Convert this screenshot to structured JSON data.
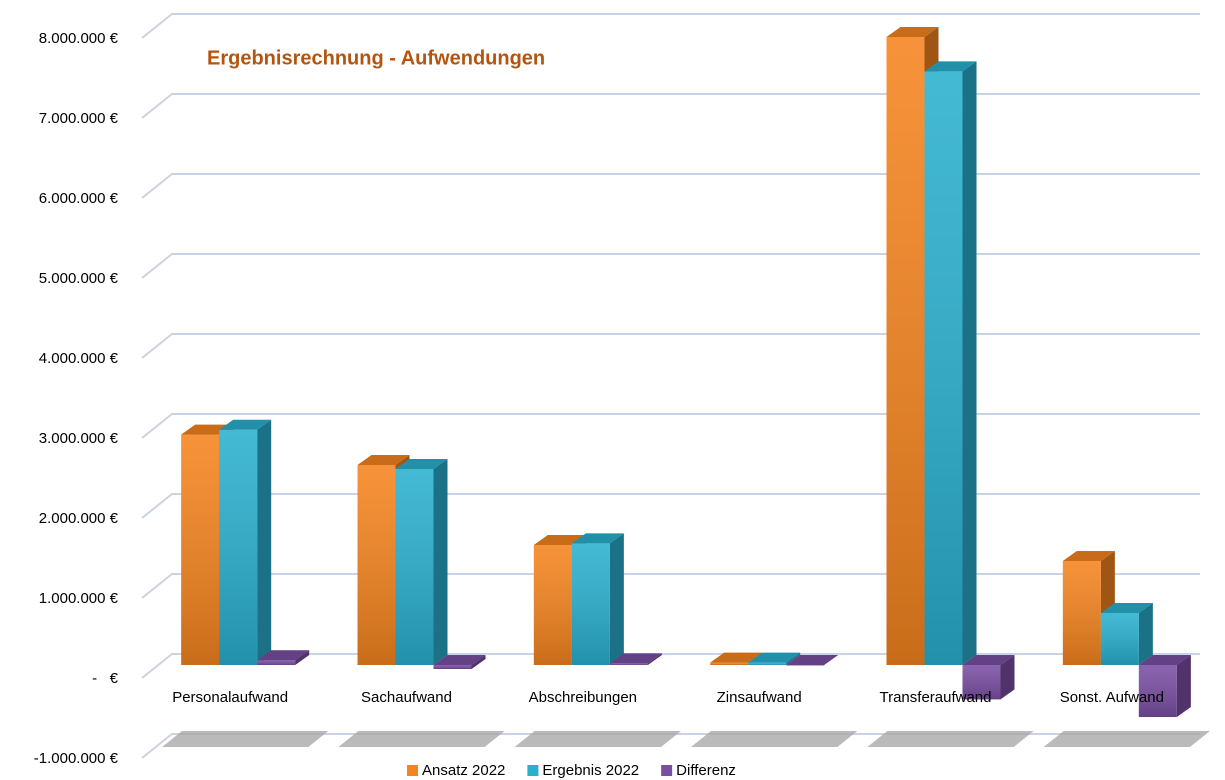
{
  "chart_data": {
    "type": "bar3d",
    "title": "Ergebnisrechnung - Aufwendungen",
    "categories": [
      "Personalaufwand",
      "Sachaufwand",
      "Abschreibungen",
      "Zinsaufwand",
      "Transferaufwand",
      "Sonst. Aufwand"
    ],
    "series": [
      {
        "name": "Ansatz 2022",
        "color": "#f5841f",
        "values": [
          2880000,
          2500000,
          1500000,
          30000,
          7850000,
          1300000
        ]
      },
      {
        "name": "Ergebnis 2022",
        "color": "#2ab0cf",
        "values": [
          2940000,
          2450000,
          1520000,
          30000,
          7420000,
          650000
        ]
      },
      {
        "name": "Differenz",
        "color": "#7a4fa3",
        "values": [
          60000,
          -50000,
          20000,
          0,
          -430000,
          -650000
        ]
      }
    ],
    "ylim": [
      -1000000,
      8000000
    ],
    "yticks": [
      {
        "value": -1000000,
        "label": "-1.000.000 €"
      },
      {
        "value": 0,
        "label": "-   €"
      },
      {
        "value": 1000000,
        "label": "1.000.000 €"
      },
      {
        "value": 2000000,
        "label": "2.000.000 €"
      },
      {
        "value": 3000000,
        "label": "3.000.000 €"
      },
      {
        "value": 4000000,
        "label": "4.000.000 €"
      },
      {
        "value": 5000000,
        "label": "5.000.000 €"
      },
      {
        "value": 6000000,
        "label": "6.000.000 €"
      },
      {
        "value": 7000000,
        "label": "7.000.000 €"
      },
      {
        "value": 8000000,
        "label": "8.000.000 €"
      }
    ],
    "grid": true,
    "legend": "bottom"
  }
}
